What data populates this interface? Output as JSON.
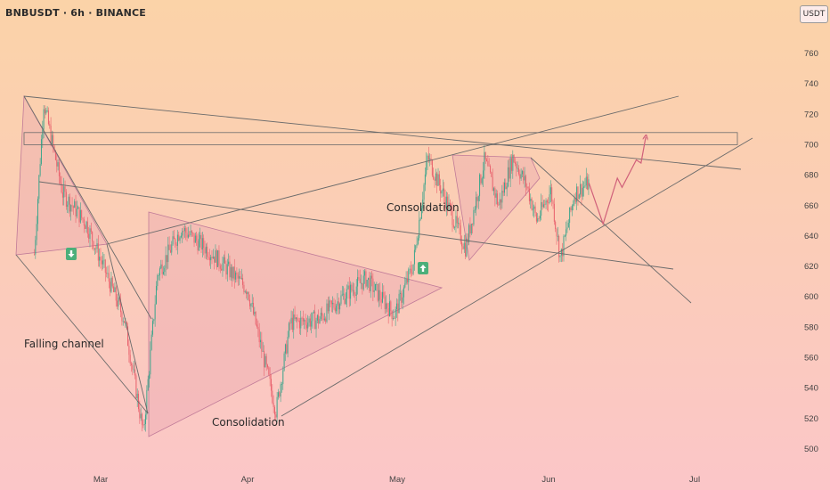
{
  "header": {
    "symbol_title": "BNBUSDT · 6h · BINANCE",
    "currency_button": "USDT"
  },
  "colors": {
    "bg_top": "#fbd3a8",
    "bg_bottom": "#fbc6c8",
    "candle_up": "#3fa58c",
    "candle_down": "#e8626d",
    "trend_line": "#6b6b6b",
    "pattern_fill": "#e8a0b0",
    "pattern_stroke": "#c07a98",
    "marker_green": "#4caf7a",
    "projection": "#d0607a"
  },
  "annotations": {
    "falling_channel": "Falling channel",
    "consolidation_1": "Consolidation",
    "consolidation_2": "Consolidation"
  },
  "chart_data": {
    "type": "candlestick",
    "x_ticks": [
      "Mar",
      "Apr",
      "May",
      "Jun",
      "Jul"
    ],
    "y_ticks": [
      500,
      520,
      540,
      560,
      580,
      600,
      620,
      640,
      660,
      680,
      700,
      720,
      740,
      760
    ],
    "ylim": [
      490,
      775
    ],
    "resistance_zone": [
      700,
      708
    ],
    "price_path": [
      {
        "date": "2023-02-15",
        "price": 628
      },
      {
        "date": "2023-02-17",
        "price": 728
      },
      {
        "date": "2023-02-21",
        "price": 668
      },
      {
        "date": "2023-02-26",
        "price": 648
      },
      {
        "date": "2023-03-06",
        "price": 585
      },
      {
        "date": "2023-03-10",
        "price": 510
      },
      {
        "date": "2023-03-13",
        "price": 615
      },
      {
        "date": "2023-03-18",
        "price": 645
      },
      {
        "date": "2023-03-24",
        "price": 630
      },
      {
        "date": "2023-04-01",
        "price": 605
      },
      {
        "date": "2023-04-07",
        "price": 525
      },
      {
        "date": "2023-04-10",
        "price": 583
      },
      {
        "date": "2023-04-16",
        "price": 585
      },
      {
        "date": "2023-04-21",
        "price": 600
      },
      {
        "date": "2023-04-26",
        "price": 612
      },
      {
        "date": "2023-05-02",
        "price": 588
      },
      {
        "date": "2023-05-06",
        "price": 622
      },
      {
        "date": "2023-05-09",
        "price": 692
      },
      {
        "date": "2023-05-13",
        "price": 662
      },
      {
        "date": "2023-05-17",
        "price": 632
      },
      {
        "date": "2023-05-21",
        "price": 690
      },
      {
        "date": "2023-05-24",
        "price": 660
      },
      {
        "date": "2023-05-27",
        "price": 692
      },
      {
        "date": "2023-05-30",
        "price": 672
      },
      {
        "date": "2023-06-01",
        "price": 650
      },
      {
        "date": "2023-06-04",
        "price": 670
      },
      {
        "date": "2023-06-06",
        "price": 625
      },
      {
        "date": "2023-06-09",
        "price": 668
      },
      {
        "date": "2023-06-12",
        "price": 675
      }
    ],
    "projection_path": [
      {
        "date": "2023-06-12",
        "price": 675
      },
      {
        "date": "2023-06-15",
        "price": 648
      },
      {
        "date": "2023-06-18",
        "price": 678
      },
      {
        "date": "2023-06-19",
        "price": 672
      },
      {
        "date": "2023-06-22",
        "price": 690
      },
      {
        "date": "2023-06-23",
        "price": 688
      },
      {
        "date": "2023-06-24",
        "price": 705
      }
    ]
  }
}
